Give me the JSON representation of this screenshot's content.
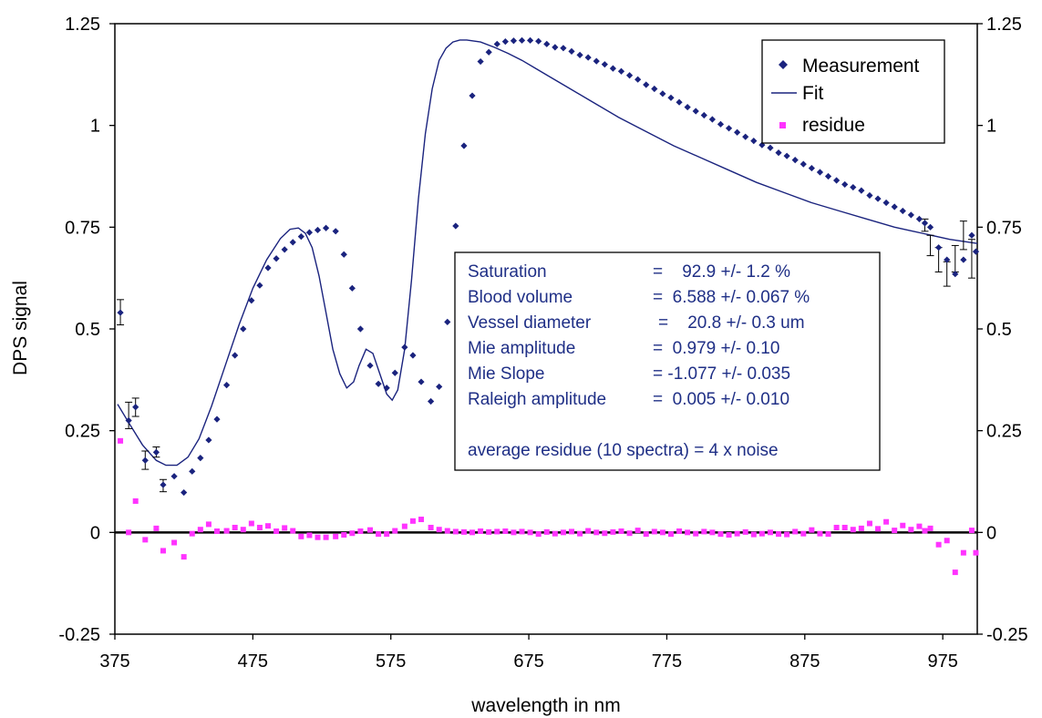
{
  "chart_data": {
    "type": "scatter",
    "title": "",
    "xlabel": "wavelength in nm",
    "ylabel": "DPS signal",
    "xlim": [
      375,
      1000
    ],
    "ylim": [
      -0.25,
      1.25
    ],
    "x_ticks": [
      375,
      475,
      575,
      675,
      775,
      875,
      975
    ],
    "x_tick_labels": [
      "375",
      "475",
      "575",
      "675",
      "775",
      "875",
      "975"
    ],
    "y_ticks": [
      -0.25,
      0,
      0.25,
      0.5,
      0.75,
      1,
      1.25
    ],
    "y_tick_labels": [
      "-0.25",
      "0",
      "0.25",
      "0.5",
      "0.75",
      "1",
      "1.25"
    ],
    "secondary_y_axis": true,
    "grid": false,
    "legend_position": "top-right",
    "colors": {
      "measurement": "#1a237e",
      "fit": "#1a237e",
      "residue": "#ff33ff",
      "info_text": "#1f2f86"
    },
    "series": [
      {
        "name": "Measurement",
        "marker": "diamond",
        "x": [
          379,
          385,
          390,
          397,
          405,
          410,
          418,
          425,
          431,
          437,
          443,
          449,
          456,
          462,
          468,
          474,
          480,
          486,
          492,
          498,
          504,
          510,
          516,
          522,
          528,
          535,
          541,
          547,
          553,
          560,
          566,
          572,
          578,
          585,
          591,
          597,
          604,
          610,
          616,
          622,
          628,
          634,
          640,
          646,
          652,
          658,
          664,
          670,
          676,
          682,
          688,
          694,
          700,
          706,
          712,
          718,
          724,
          730,
          736,
          742,
          748,
          754,
          760,
          766,
          772,
          778,
          784,
          790,
          796,
          802,
          808,
          814,
          820,
          826,
          832,
          838,
          844,
          850,
          856,
          862,
          868,
          874,
          880,
          886,
          892,
          898,
          904,
          910,
          916,
          922,
          928,
          934,
          940,
          946,
          952,
          958,
          962,
          966,
          972,
          978,
          984,
          990,
          996,
          999
        ],
        "y": [
          0.54,
          0.275,
          0.308,
          0.177,
          0.197,
          0.117,
          0.138,
          0.098,
          0.15,
          0.183,
          0.227,
          0.278,
          0.362,
          0.435,
          0.5,
          0.57,
          0.607,
          0.65,
          0.673,
          0.695,
          0.713,
          0.727,
          0.737,
          0.743,
          0.748,
          0.74,
          0.683,
          0.6,
          0.5,
          0.41,
          0.365,
          0.355,
          0.392,
          0.455,
          0.435,
          0.37,
          0.322,
          0.358,
          0.517,
          0.753,
          0.95,
          1.073,
          1.157,
          1.18,
          1.2,
          1.206,
          1.208,
          1.209,
          1.209,
          1.207,
          1.2,
          1.192,
          1.19,
          1.182,
          1.173,
          1.167,
          1.158,
          1.15,
          1.14,
          1.133,
          1.123,
          1.113,
          1.1,
          1.09,
          1.078,
          1.068,
          1.057,
          1.045,
          1.035,
          1.025,
          1.015,
          1.003,
          0.993,
          0.983,
          0.972,
          0.962,
          0.952,
          0.945,
          0.933,
          0.925,
          0.915,
          0.905,
          0.895,
          0.885,
          0.875,
          0.865,
          0.855,
          0.848,
          0.84,
          0.828,
          0.82,
          0.81,
          0.8,
          0.79,
          0.78,
          0.77,
          0.76,
          0.75,
          0.7,
          0.67,
          0.635,
          0.67,
          0.73,
          0.69
        ]
      },
      {
        "name": "Fit",
        "line": true,
        "x": [
          377,
          385,
          395,
          405,
          412,
          420,
          428,
          436,
          445,
          455,
          465,
          475,
          485,
          495,
          502,
          508,
          513,
          518,
          523,
          528,
          533,
          538,
          543,
          548,
          552,
          557,
          562,
          567,
          572,
          576,
          580,
          585,
          590,
          595,
          600,
          605,
          610,
          615,
          620,
          625,
          630,
          640,
          650,
          660,
          670,
          680,
          690,
          700,
          720,
          740,
          760,
          780,
          800,
          820,
          840,
          860,
          880,
          900,
          920,
          940,
          960,
          980,
          1000
        ],
        "y": [
          0.315,
          0.27,
          0.215,
          0.177,
          0.165,
          0.165,
          0.185,
          0.23,
          0.31,
          0.41,
          0.51,
          0.6,
          0.67,
          0.722,
          0.745,
          0.748,
          0.735,
          0.7,
          0.63,
          0.54,
          0.45,
          0.39,
          0.355,
          0.37,
          0.41,
          0.45,
          0.44,
          0.39,
          0.34,
          0.325,
          0.35,
          0.45,
          0.62,
          0.82,
          0.98,
          1.09,
          1.16,
          1.19,
          1.205,
          1.21,
          1.21,
          1.205,
          1.192,
          1.177,
          1.16,
          1.14,
          1.12,
          1.1,
          1.06,
          1.02,
          0.985,
          0.95,
          0.92,
          0.89,
          0.86,
          0.835,
          0.81,
          0.79,
          0.77,
          0.75,
          0.735,
          0.72,
          0.71
        ]
      },
      {
        "name": "residue",
        "marker": "square",
        "x": [
          379,
          385,
          390,
          397,
          405,
          410,
          418,
          425,
          431,
          437,
          443,
          449,
          456,
          462,
          468,
          474,
          480,
          486,
          492,
          498,
          504,
          510,
          516,
          522,
          528,
          535,
          541,
          547,
          553,
          560,
          566,
          572,
          578,
          585,
          591,
          597,
          604,
          610,
          616,
          622,
          628,
          634,
          640,
          646,
          652,
          658,
          664,
          670,
          676,
          682,
          688,
          694,
          700,
          706,
          712,
          718,
          724,
          730,
          736,
          742,
          748,
          754,
          760,
          766,
          772,
          778,
          784,
          790,
          796,
          802,
          808,
          814,
          820,
          826,
          832,
          838,
          844,
          850,
          856,
          862,
          868,
          874,
          880,
          886,
          892,
          898,
          904,
          910,
          916,
          922,
          928,
          934,
          940,
          946,
          952,
          958,
          962,
          966,
          972,
          978,
          984,
          990,
          996,
          999
        ],
        "y": [
          0.225,
          0.0,
          0.077,
          -0.018,
          0.01,
          -0.045,
          -0.025,
          -0.06,
          -0.003,
          0.007,
          0.02,
          0.003,
          0.004,
          0.012,
          0.007,
          0.022,
          0.012,
          0.016,
          0.003,
          0.011,
          0.004,
          -0.01,
          -0.007,
          -0.012,
          -0.012,
          -0.01,
          -0.006,
          -0.002,
          0.003,
          0.006,
          -0.004,
          -0.004,
          0.004,
          0.015,
          0.028,
          0.032,
          0.012,
          0.007,
          0.004,
          0.002,
          0.001,
          0.0,
          0.003,
          0.001,
          0.002,
          0.003,
          0.0,
          0.002,
          0.0,
          -0.004,
          0.001,
          -0.003,
          0.0,
          0.002,
          -0.003,
          0.004,
          0.0,
          -0.002,
          0.001,
          0.003,
          -0.002,
          0.005,
          -0.004,
          0.002,
          0.0,
          -0.004,
          0.003,
          0.0,
          -0.003,
          0.002,
          0.0,
          -0.004,
          -0.006,
          -0.003,
          0.001,
          -0.005,
          -0.003,
          0.0,
          -0.004,
          -0.005,
          0.002,
          -0.003,
          0.006,
          -0.003,
          -0.004,
          0.012,
          0.012,
          0.007,
          0.01,
          0.022,
          0.009,
          0.026,
          0.005,
          0.017,
          0.007,
          0.015,
          0.004,
          0.01,
          -0.03,
          -0.02,
          -0.098,
          -0.05,
          0.005,
          -0.05
        ]
      }
    ],
    "error_bars": [
      {
        "x": 379,
        "low": 0.51,
        "high": 0.572
      },
      {
        "x": 385,
        "low": 0.255,
        "high": 0.32
      },
      {
        "x": 390,
        "low": 0.285,
        "high": 0.33
      },
      {
        "x": 397,
        "low": 0.155,
        "high": 0.2
      },
      {
        "x": 405,
        "low": 0.185,
        "high": 0.21
      },
      {
        "x": 410,
        "low": 0.1,
        "high": 0.13
      },
      {
        "x": 962,
        "low": 0.74,
        "high": 0.77
      },
      {
        "x": 966,
        "low": 0.68,
        "high": 0.73
      },
      {
        "x": 972,
        "low": 0.64,
        "high": 0.7
      },
      {
        "x": 978,
        "low": 0.605,
        "high": 0.665
      },
      {
        "x": 984,
        "low": 0.64,
        "high": 0.705
      },
      {
        "x": 990,
        "low": 0.695,
        "high": 0.765
      },
      {
        "x": 996,
        "low": 0.625,
        "high": 0.72
      }
    ],
    "annotation_box": {
      "lines": [
        [
          "Saturation",
          "=    92.9 +/- 1.2 %"
        ],
        [
          "Blood volume",
          "=  6.588 +/- 0.067 %"
        ],
        [
          "Vessel diameter",
          "=    20.8 +/- 0.3 um"
        ],
        [
          "Mie amplitude",
          "=  0.979 +/- 0.10"
        ],
        [
          "Mie Slope",
          "= -1.077 +/- 0.035"
        ],
        [
          "Raleigh amplitude",
          "=  0.005 +/- 0.010"
        ]
      ],
      "footer": "average residue (10 spectra) = 4 x noise"
    }
  }
}
